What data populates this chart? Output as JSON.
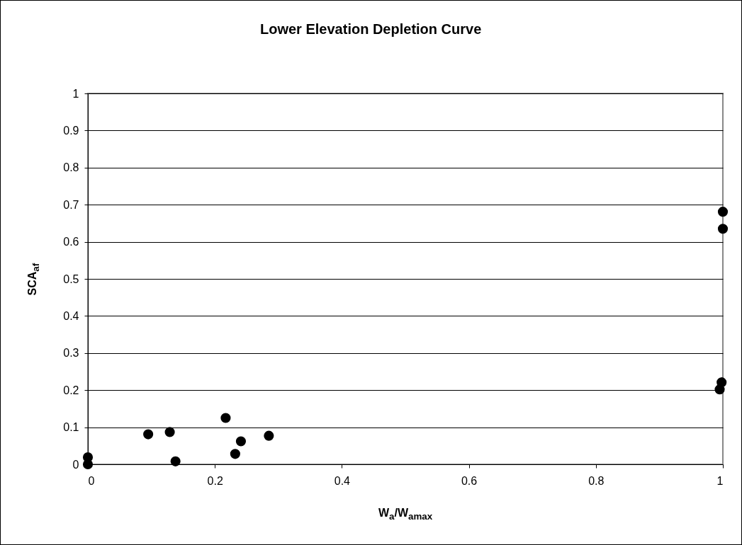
{
  "chart_data": {
    "type": "scatter",
    "title": "Lower Elevation Depletion Curve",
    "xlabel": "W$_{a}$/W$_{amax}$",
    "ylabel": "SCA$_{af}$",
    "x": [
      0,
      0,
      0.095,
      0.129,
      0.138,
      0.217,
      0.232,
      0.241,
      0.285,
      0.995,
      0.998,
      1,
      1
    ],
    "series": [
      {
        "color": "#000000",
        "values": [
          0.019,
          0,
          0.081,
          0.087,
          0.008,
          0.125,
          0.028,
          0.062,
          0.077,
          0.202,
          0.221,
          0.635,
          0.681
        ]
      }
    ],
    "xlim": [
      0,
      1
    ],
    "xticks": [
      0,
      0.2,
      0.4,
      0.6,
      0.8,
      1
    ],
    "ylim": [
      0,
      1
    ],
    "yticks": [
      0,
      0.1,
      0.2,
      0.3,
      0.4,
      0.5,
      0.6,
      0.7,
      0.8,
      0.9,
      1
    ],
    "grid": "y",
    "marker": "circle"
  }
}
